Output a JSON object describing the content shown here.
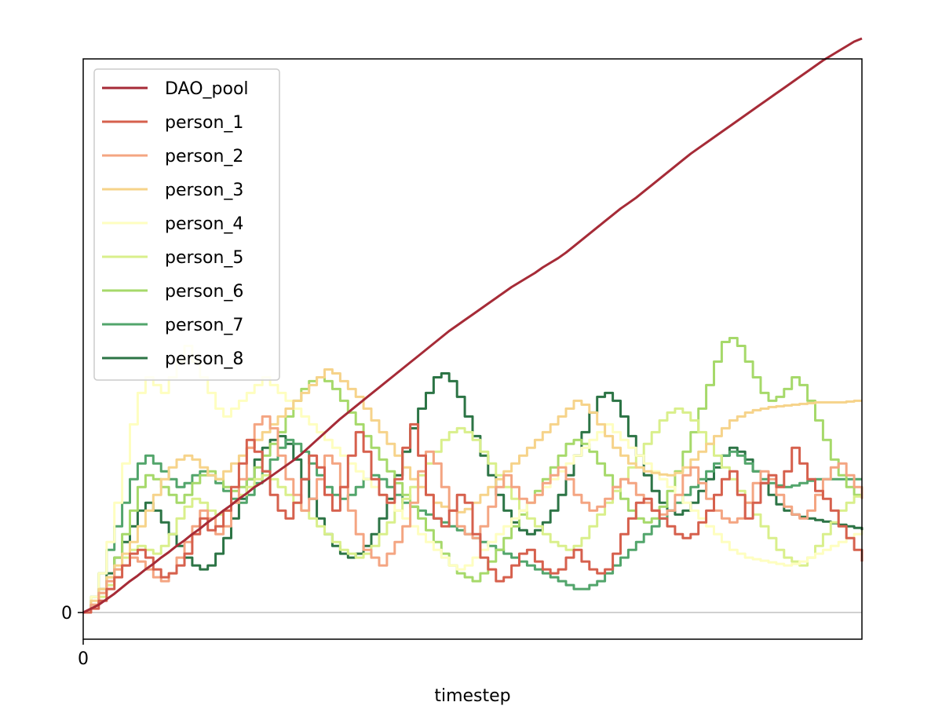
{
  "chart_data": {
    "type": "line",
    "title": "",
    "xlabel": "timestep",
    "ylabel": "",
    "xlim": [
      0,
      1000
    ],
    "ylim": [
      -34,
      706
    ],
    "x_ticks": [
      0
    ],
    "x_tick_labels": [
      "0"
    ],
    "y_ticks": [
      0
    ],
    "y_tick_labels": [
      "0"
    ],
    "zero_line_color": "#c0c0c0",
    "grid": false,
    "legend_position": "top-left",
    "x_step": 10,
    "series": [
      {
        "name": "DAO_pool",
        "color": "#a62b37",
        "step": false,
        "values": [
          0,
          5,
          10,
          17,
          24,
          32,
          40,
          47,
          55,
          62,
          70,
          77,
          85,
          92,
          100,
          107,
          115,
          122,
          130,
          137,
          145,
          152,
          160,
          166,
          173,
          180,
          187,
          194,
          202,
          211,
          220,
          229,
          238,
          247,
          255,
          263,
          271,
          279,
          287,
          295,
          303,
          311,
          319,
          327,
          335,
          343,
          351,
          359,
          366,
          373,
          380,
          387,
          394,
          401,
          408,
          415,
          421,
          427,
          433,
          440,
          446,
          452,
          459,
          467,
          475,
          483,
          491,
          499,
          507,
          515,
          522,
          529,
          537,
          545,
          553,
          561,
          569,
          577,
          585,
          592,
          599,
          606,
          613,
          620,
          627,
          634,
          641,
          648,
          655,
          662,
          669,
          676,
          683,
          690,
          697,
          704,
          710,
          716,
          722,
          728,
          732
        ]
      },
      {
        "name": "person_1",
        "color": "#d6604d",
        "step": true,
        "values": [
          0,
          5,
          15,
          30,
          45,
          60,
          75,
          80,
          70,
          55,
          45,
          50,
          60,
          75,
          100,
          120,
          105,
          110,
          130,
          160,
          190,
          220,
          205,
          180,
          150,
          130,
          120,
          140,
          170,
          200,
          185,
          150,
          130,
          160,
          200,
          230,
          205,
          170,
          150,
          140,
          170,
          210,
          240,
          200,
          150,
          120,
          110,
          130,
          150,
          140,
          100,
          70,
          55,
          40,
          45,
          60,
          75,
          80,
          65,
          55,
          50,
          55,
          70,
          80,
          65,
          55,
          50,
          55,
          75,
          100,
          120,
          140,
          145,
          130,
          120,
          110,
          100,
          95,
          100,
          115,
          130,
          150,
          170,
          180,
          150,
          120,
          140,
          165,
          175,
          160,
          180,
          210,
          190,
          170,
          155,
          145,
          130,
          110,
          95,
          80,
          65
        ]
      },
      {
        "name": "person_2",
        "color": "#f4a582",
        "step": true,
        "values": [
          0,
          10,
          25,
          40,
          55,
          60,
          70,
          65,
          55,
          45,
          40,
          50,
          70,
          90,
          110,
          130,
          120,
          100,
          110,
          140,
          170,
          210,
          240,
          250,
          235,
          200,
          170,
          150,
          130,
          145,
          170,
          200,
          190,
          160,
          130,
          100,
          80,
          70,
          60,
          75,
          90,
          110,
          140,
          180,
          205,
          190,
          160,
          130,
          110,
          100,
          95,
          110,
          135,
          160,
          175,
          160,
          145,
          140,
          150,
          165,
          175,
          185,
          170,
          150,
          140,
          130,
          135,
          145,
          160,
          170,
          165,
          150,
          140,
          130,
          125,
          130,
          150,
          175,
          185,
          165,
          145,
          130,
          120,
          115,
          120,
          140,
          165,
          180,
          170,
          150,
          135,
          125,
          120,
          130,
          150,
          170,
          185,
          190,
          175,
          160,
          145
        ]
      },
      {
        "name": "person_3",
        "color": "#f6d38a",
        "step": true,
        "values": [
          0,
          15,
          30,
          45,
          60,
          75,
          90,
          110,
          130,
          150,
          170,
          185,
          195,
          200,
          195,
          185,
          175,
          170,
          180,
          190,
          200,
          210,
          220,
          230,
          240,
          250,
          260,
          270,
          280,
          290,
          300,
          310,
          305,
          295,
          285,
          275,
          260,
          245,
          230,
          215,
          200,
          185,
          170,
          160,
          150,
          140,
          135,
          130,
          128,
          132,
          140,
          150,
          160,
          170,
          180,
          190,
          200,
          210,
          220,
          230,
          240,
          250,
          260,
          270,
          265,
          255,
          240,
          225,
          210,
          200,
          190,
          185,
          180,
          178,
          176,
          175,
          178,
          185,
          195,
          205,
          215,
          225,
          235,
          245,
          250,
          255,
          258,
          260,
          262,
          263,
          264,
          265,
          266,
          267,
          268,
          268,
          268,
          268,
          269,
          270,
          270
        ]
      },
      {
        "name": "person_4",
        "color": "#fefec0",
        "step": true,
        "values": [
          0,
          20,
          50,
          90,
          140,
          190,
          240,
          280,
          300,
          290,
          280,
          300,
          320,
          340,
          320,
          300,
          280,
          260,
          250,
          260,
          270,
          280,
          290,
          300,
          290,
          280,
          270,
          260,
          250,
          240,
          230,
          220,
          210,
          200,
          190,
          180,
          170,
          160,
          150,
          140,
          130,
          120,
          110,
          100,
          90,
          80,
          70,
          60,
          55,
          60,
          70,
          80,
          90,
          100,
          110,
          120,
          130,
          140,
          150,
          160,
          170,
          180,
          190,
          200,
          210,
          220,
          230,
          240,
          230,
          220,
          210,
          200,
          190,
          180,
          170,
          160,
          150,
          140,
          130,
          120,
          110,
          100,
          90,
          80,
          75,
          70,
          68,
          66,
          64,
          62,
          60,
          62,
          65,
          70,
          75,
          80,
          85,
          90,
          95,
          100,
          105
        ]
      },
      {
        "name": "person_5",
        "color": "#d9ef8b",
        "step": true,
        "values": [
          0,
          10,
          20,
          35,
          55,
          70,
          80,
          85,
          80,
          75,
          85,
          100,
          120,
          135,
          145,
          140,
          130,
          125,
          130,
          140,
          150,
          160,
          170,
          175,
          170,
          160,
          150,
          140,
          130,
          120,
          110,
          100,
          90,
          80,
          75,
          70,
          75,
          85,
          100,
          115,
          130,
          145,
          160,
          175,
          190,
          205,
          220,
          230,
          235,
          230,
          220,
          205,
          190,
          175,
          160,
          145,
          130,
          120,
          110,
          100,
          90,
          85,
          80,
          85,
          95,
          110,
          125,
          140,
          155,
          170,
          185,
          200,
          215,
          230,
          245,
          255,
          260,
          255,
          245,
          230,
          215,
          200,
          185,
          170,
          155,
          140,
          125,
          110,
          95,
          80,
          70,
          65,
          60,
          70,
          85,
          100,
          115,
          130,
          140,
          148,
          150
        ]
      },
      {
        "name": "person_6",
        "color": "#a6d96a",
        "step": true,
        "values": [
          0,
          10,
          25,
          45,
          70,
          100,
          130,
          160,
          175,
          170,
          160,
          150,
          140,
          150,
          165,
          175,
          180,
          170,
          160,
          155,
          160,
          170,
          185,
          200,
          215,
          230,
          250,
          270,
          285,
          295,
          300,
          295,
          285,
          270,
          255,
          240,
          225,
          210,
          195,
          180,
          165,
          150,
          135,
          120,
          105,
          90,
          75,
          60,
          50,
          45,
          40,
          50,
          65,
          80,
          95,
          110,
          125,
          140,
          155,
          170,
          185,
          200,
          215,
          220,
          215,
          205,
          190,
          175,
          160,
          145,
          130,
          120,
          115,
          120,
          135,
          155,
          180,
          205,
          230,
          260,
          290,
          320,
          345,
          350,
          340,
          320,
          300,
          280,
          270,
          275,
          285,
          300,
          290,
          270,
          245,
          220,
          195,
          175,
          160,
          150,
          145
        ]
      },
      {
        "name": "person_7",
        "color": "#52a56b",
        "step": true,
        "values": [
          0,
          20,
          50,
          80,
          110,
          140,
          170,
          190,
          200,
          190,
          180,
          170,
          160,
          165,
          175,
          180,
          175,
          165,
          155,
          145,
          140,
          150,
          165,
          180,
          195,
          210,
          220,
          215,
          205,
          190,
          175,
          160,
          150,
          145,
          150,
          160,
          170,
          175,
          170,
          160,
          150,
          140,
          135,
          130,
          125,
          120,
          115,
          110,
          105,
          100,
          95,
          90,
          85,
          80,
          75,
          70,
          65,
          60,
          55,
          50,
          45,
          40,
          35,
          30,
          30,
          35,
          40,
          50,
          60,
          70,
          80,
          90,
          100,
          110,
          120,
          130,
          140,
          150,
          160,
          170,
          180,
          190,
          200,
          205,
          200,
          190,
          180,
          170,
          165,
          162,
          160,
          162,
          165,
          168,
          170,
          170,
          170,
          170,
          170,
          170,
          170
        ]
      },
      {
        "name": "person_8",
        "color": "#2c7445",
        "step": true,
        "values": [
          0,
          10,
          30,
          50,
          70,
          90,
          110,
          130,
          140,
          130,
          115,
          100,
          85,
          70,
          60,
          55,
          60,
          75,
          95,
          120,
          145,
          170,
          195,
          210,
          220,
          225,
          215,
          195,
          170,
          145,
          120,
          100,
          85,
          75,
          70,
          75,
          85,
          100,
          120,
          145,
          175,
          205,
          235,
          260,
          280,
          300,
          305,
          295,
          275,
          250,
          225,
          200,
          175,
          150,
          130,
          115,
          105,
          100,
          105,
          115,
          130,
          150,
          175,
          200,
          230,
          255,
          275,
          280,
          270,
          250,
          225,
          200,
          175,
          155,
          140,
          130,
          125,
          130,
          140,
          155,
          170,
          185,
          200,
          210,
          205,
          195,
          180,
          165,
          150,
          138,
          130,
          125,
          122,
          120,
          118,
          116,
          114,
          112,
          110,
          108,
          105
        ]
      }
    ]
  }
}
